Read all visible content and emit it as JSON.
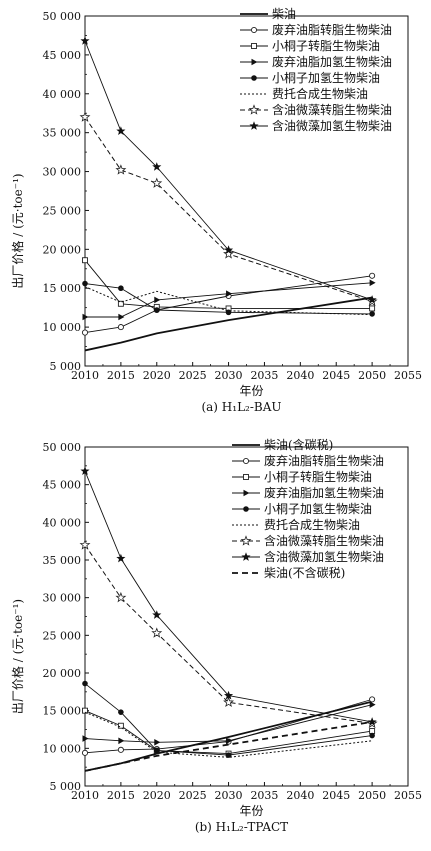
{
  "chart_data": [
    {
      "type": "line",
      "caption": "(a) H₁L₂-BAU",
      "xlabel": "年份",
      "ylabel": "出厂价格 / (元·toe⁻¹)",
      "xlim": [
        2010,
        2055
      ],
      "ylim": [
        5000,
        50000
      ],
      "x_ticks": [
        "2010",
        "2015",
        "2020",
        "2025",
        "2030",
        "2035",
        "2040",
        "2045",
        "2050",
        "2055"
      ],
      "y_ticks": [
        "5 000",
        "10 000",
        "15 000",
        "20 000",
        "25 000",
        "30 000",
        "35 000",
        "40 000",
        "45 000",
        "50 000"
      ],
      "legend_position": "top-right",
      "series": [
        {
          "name": "柴油",
          "style": "solid-thick",
          "marker": "none",
          "x": [
            2010,
            2015,
            2020,
            2030,
            2050
          ],
          "values": [
            7000,
            8000,
            9200,
            10900,
            13800
          ]
        },
        {
          "name": "废弃油脂转脂生物柴油",
          "style": "solid",
          "marker": "open-circle",
          "x": [
            2010,
            2015,
            2020,
            2030,
            2050
          ],
          "values": [
            9300,
            10000,
            12200,
            14000,
            16600
          ]
        },
        {
          "name": "小桐子转脂生物柴油",
          "style": "solid",
          "marker": "open-square",
          "x": [
            2010,
            2015,
            2020,
            2030,
            2050
          ],
          "values": [
            18600,
            13000,
            12600,
            12400,
            12400
          ]
        },
        {
          "name": "废弃油脂加氢生物柴油",
          "style": "solid",
          "marker": "filled-triangle",
          "x": [
            2010,
            2015,
            2020,
            2030,
            2050
          ],
          "values": [
            11300,
            11300,
            13500,
            14300,
            15700
          ]
        },
        {
          "name": "小桐子加氢生物柴油",
          "style": "solid",
          "marker": "filled-circle",
          "x": [
            2010,
            2015,
            2020,
            2030,
            2050
          ],
          "values": [
            15600,
            15000,
            12200,
            11900,
            11700
          ]
        },
        {
          "name": "费托合成生物柴油",
          "style": "dotted",
          "marker": "none",
          "x": [
            2010,
            2015,
            2020,
            2030,
            2050
          ],
          "values": [
            15200,
            13200,
            14600,
            12100,
            11600
          ]
        },
        {
          "name": "含油微藻转脂生物柴油",
          "style": "dashed",
          "marker": "open-star",
          "x": [
            2010,
            2015,
            2020,
            2030,
            2050
          ],
          "values": [
            37000,
            30200,
            28500,
            19400,
            13300
          ]
        },
        {
          "name": "含油微藻加氢生物柴油",
          "style": "solid",
          "marker": "filled-star",
          "x": [
            2010,
            2015,
            2020,
            2030,
            2050
          ],
          "values": [
            46800,
            35200,
            30600,
            19900,
            13500
          ]
        }
      ]
    },
    {
      "type": "line",
      "caption": "(b) H₁L₂-TPACT",
      "xlabel": "年份",
      "ylabel": "出厂价格 / (元·toe⁻¹)",
      "xlim": [
        2010,
        2055
      ],
      "ylim": [
        5000,
        50000
      ],
      "x_ticks": [
        "2010",
        "2015",
        "2020",
        "2025",
        "2030",
        "2035",
        "2040",
        "2045",
        "2050",
        "2055"
      ],
      "y_ticks": [
        "5 000",
        "10 000",
        "15 000",
        "20 000",
        "25 000",
        "30 000",
        "35 000",
        "40 000",
        "45 000",
        "50 000"
      ],
      "legend_position": "top-right",
      "series": [
        {
          "name": "柴油(含碳税)",
          "style": "solid-thick",
          "marker": "none",
          "x": [
            2010,
            2015,
            2020,
            2030,
            2050
          ],
          "values": [
            7000,
            8000,
            9300,
            11500,
            16200
          ]
        },
        {
          "name": "废弃油脂转脂生物柴油",
          "style": "solid",
          "marker": "open-circle",
          "x": [
            2010,
            2015,
            2020,
            2030,
            2050
          ],
          "values": [
            9400,
            9800,
            9900,
            10900,
            16500
          ]
        },
        {
          "name": "小桐子转脂生物柴油",
          "style": "solid",
          "marker": "open-square",
          "x": [
            2010,
            2015,
            2020,
            2030,
            2050
          ],
          "values": [
            15000,
            13000,
            9700,
            9300,
            12300
          ]
        },
        {
          "name": "废弃油脂加氢生物柴油",
          "style": "solid",
          "marker": "filled-triangle",
          "x": [
            2010,
            2015,
            2020,
            2030,
            2050
          ],
          "values": [
            11300,
            11000,
            10800,
            11000,
            15800
          ]
        },
        {
          "name": "小桐子加氢生物柴油",
          "style": "solid",
          "marker": "filled-circle",
          "x": [
            2010,
            2015,
            2020,
            2030,
            2050
          ],
          "values": [
            18600,
            14800,
            9700,
            9100,
            11700
          ]
        },
        {
          "name": "费托合成生物柴油",
          "style": "dotted",
          "marker": "none",
          "x": [
            2010,
            2015,
            2020,
            2030,
            2050
          ],
          "values": [
            14800,
            12800,
            9500,
            8800,
            11000
          ]
        },
        {
          "name": "含油微藻转脂生物柴油",
          "style": "dashed",
          "marker": "open-star",
          "x": [
            2010,
            2015,
            2020,
            2030,
            2050
          ],
          "values": [
            37000,
            30000,
            25300,
            16100,
            13300
          ]
        },
        {
          "name": "含油微藻加氢生物柴油",
          "style": "solid",
          "marker": "filled-star",
          "x": [
            2010,
            2015,
            2020,
            2030,
            2050
          ],
          "values": [
            46800,
            35200,
            27700,
            17000,
            13500
          ]
        },
        {
          "name": "柴油(不含碳税)",
          "style": "dashed-thick",
          "marker": "none",
          "x": [
            2010,
            2015,
            2020,
            2030,
            2050
          ],
          "values": [
            7000,
            8000,
            9000,
            10500,
            13500
          ]
        }
      ]
    }
  ]
}
